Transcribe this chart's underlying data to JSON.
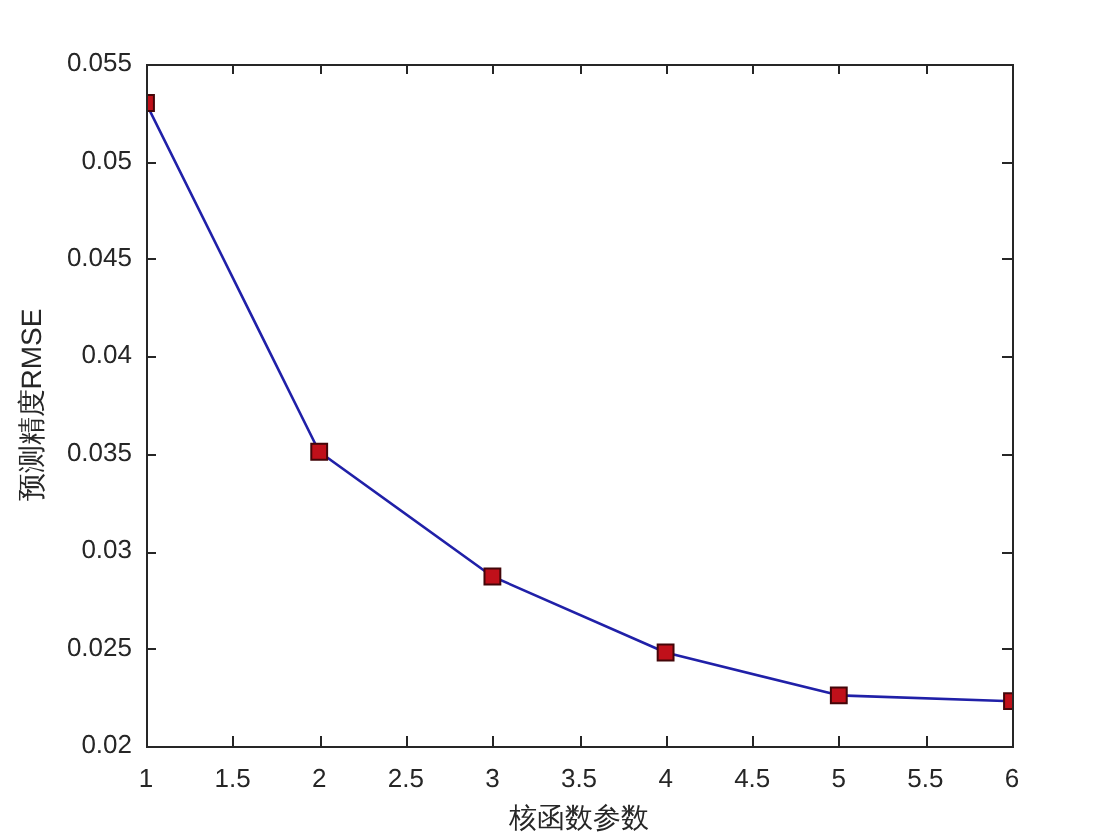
{
  "chart_data": {
    "type": "line",
    "xlabel": "核函数参数",
    "ylabel": "预测精度RMSE",
    "x": [
      1,
      2,
      3,
      4,
      5,
      6
    ],
    "series": [
      {
        "color": "#2020a8",
        "colors": [
          "#c0101a",
          "#c0101a",
          "#c0101a",
          "#c0101a",
          "#c0101a",
          "#c0101a"
        ],
        "values": [
          0.053,
          0.0351,
          0.0287,
          0.0248,
          0.0226,
          0.0223
        ]
      }
    ],
    "xlim": [
      1,
      6
    ],
    "xticks": [
      1,
      1.5,
      2,
      2.5,
      3,
      3.5,
      4,
      4.5,
      5,
      5.5,
      6
    ],
    "ylim": [
      0.02,
      0.055
    ],
    "yticks": [
      0.02,
      0.025,
      0.03,
      0.035,
      0.04,
      0.045,
      0.05,
      0.055
    ],
    "grid": false,
    "legend": false,
    "marker": "square",
    "line_style": "solid"
  }
}
